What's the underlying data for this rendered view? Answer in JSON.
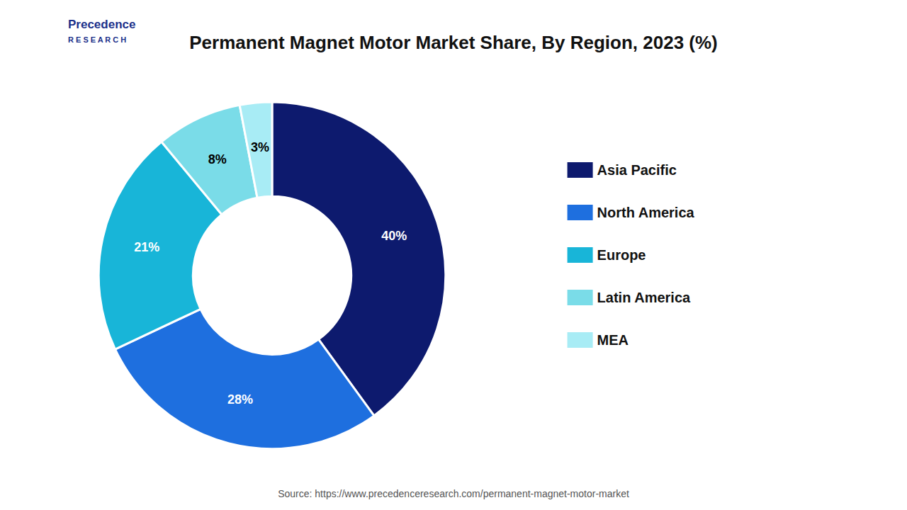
{
  "chart_data": {
    "type": "pie",
    "title": "Permanent Magnet Motor Market Share, By Region, 2023 (%)",
    "categories": [
      "Asia Pacific",
      "North America",
      "Europe",
      "Latin America",
      "MEA"
    ],
    "values": [
      40,
      28,
      21,
      8,
      3
    ],
    "value_labels": [
      "40%",
      "28%",
      "21%",
      "8%",
      "3%"
    ],
    "colors": [
      "#0d1a6e",
      "#1e6fdf",
      "#18b5d8",
      "#7adce8",
      "#a8ecf5"
    ],
    "data_labels": true,
    "legend": "right",
    "annotations": [
      "Precedence",
      "R E S E A R C H",
      "Source: https://www.precedenceresearch.com/permanent-magnet-motor-market"
    ]
  }
}
